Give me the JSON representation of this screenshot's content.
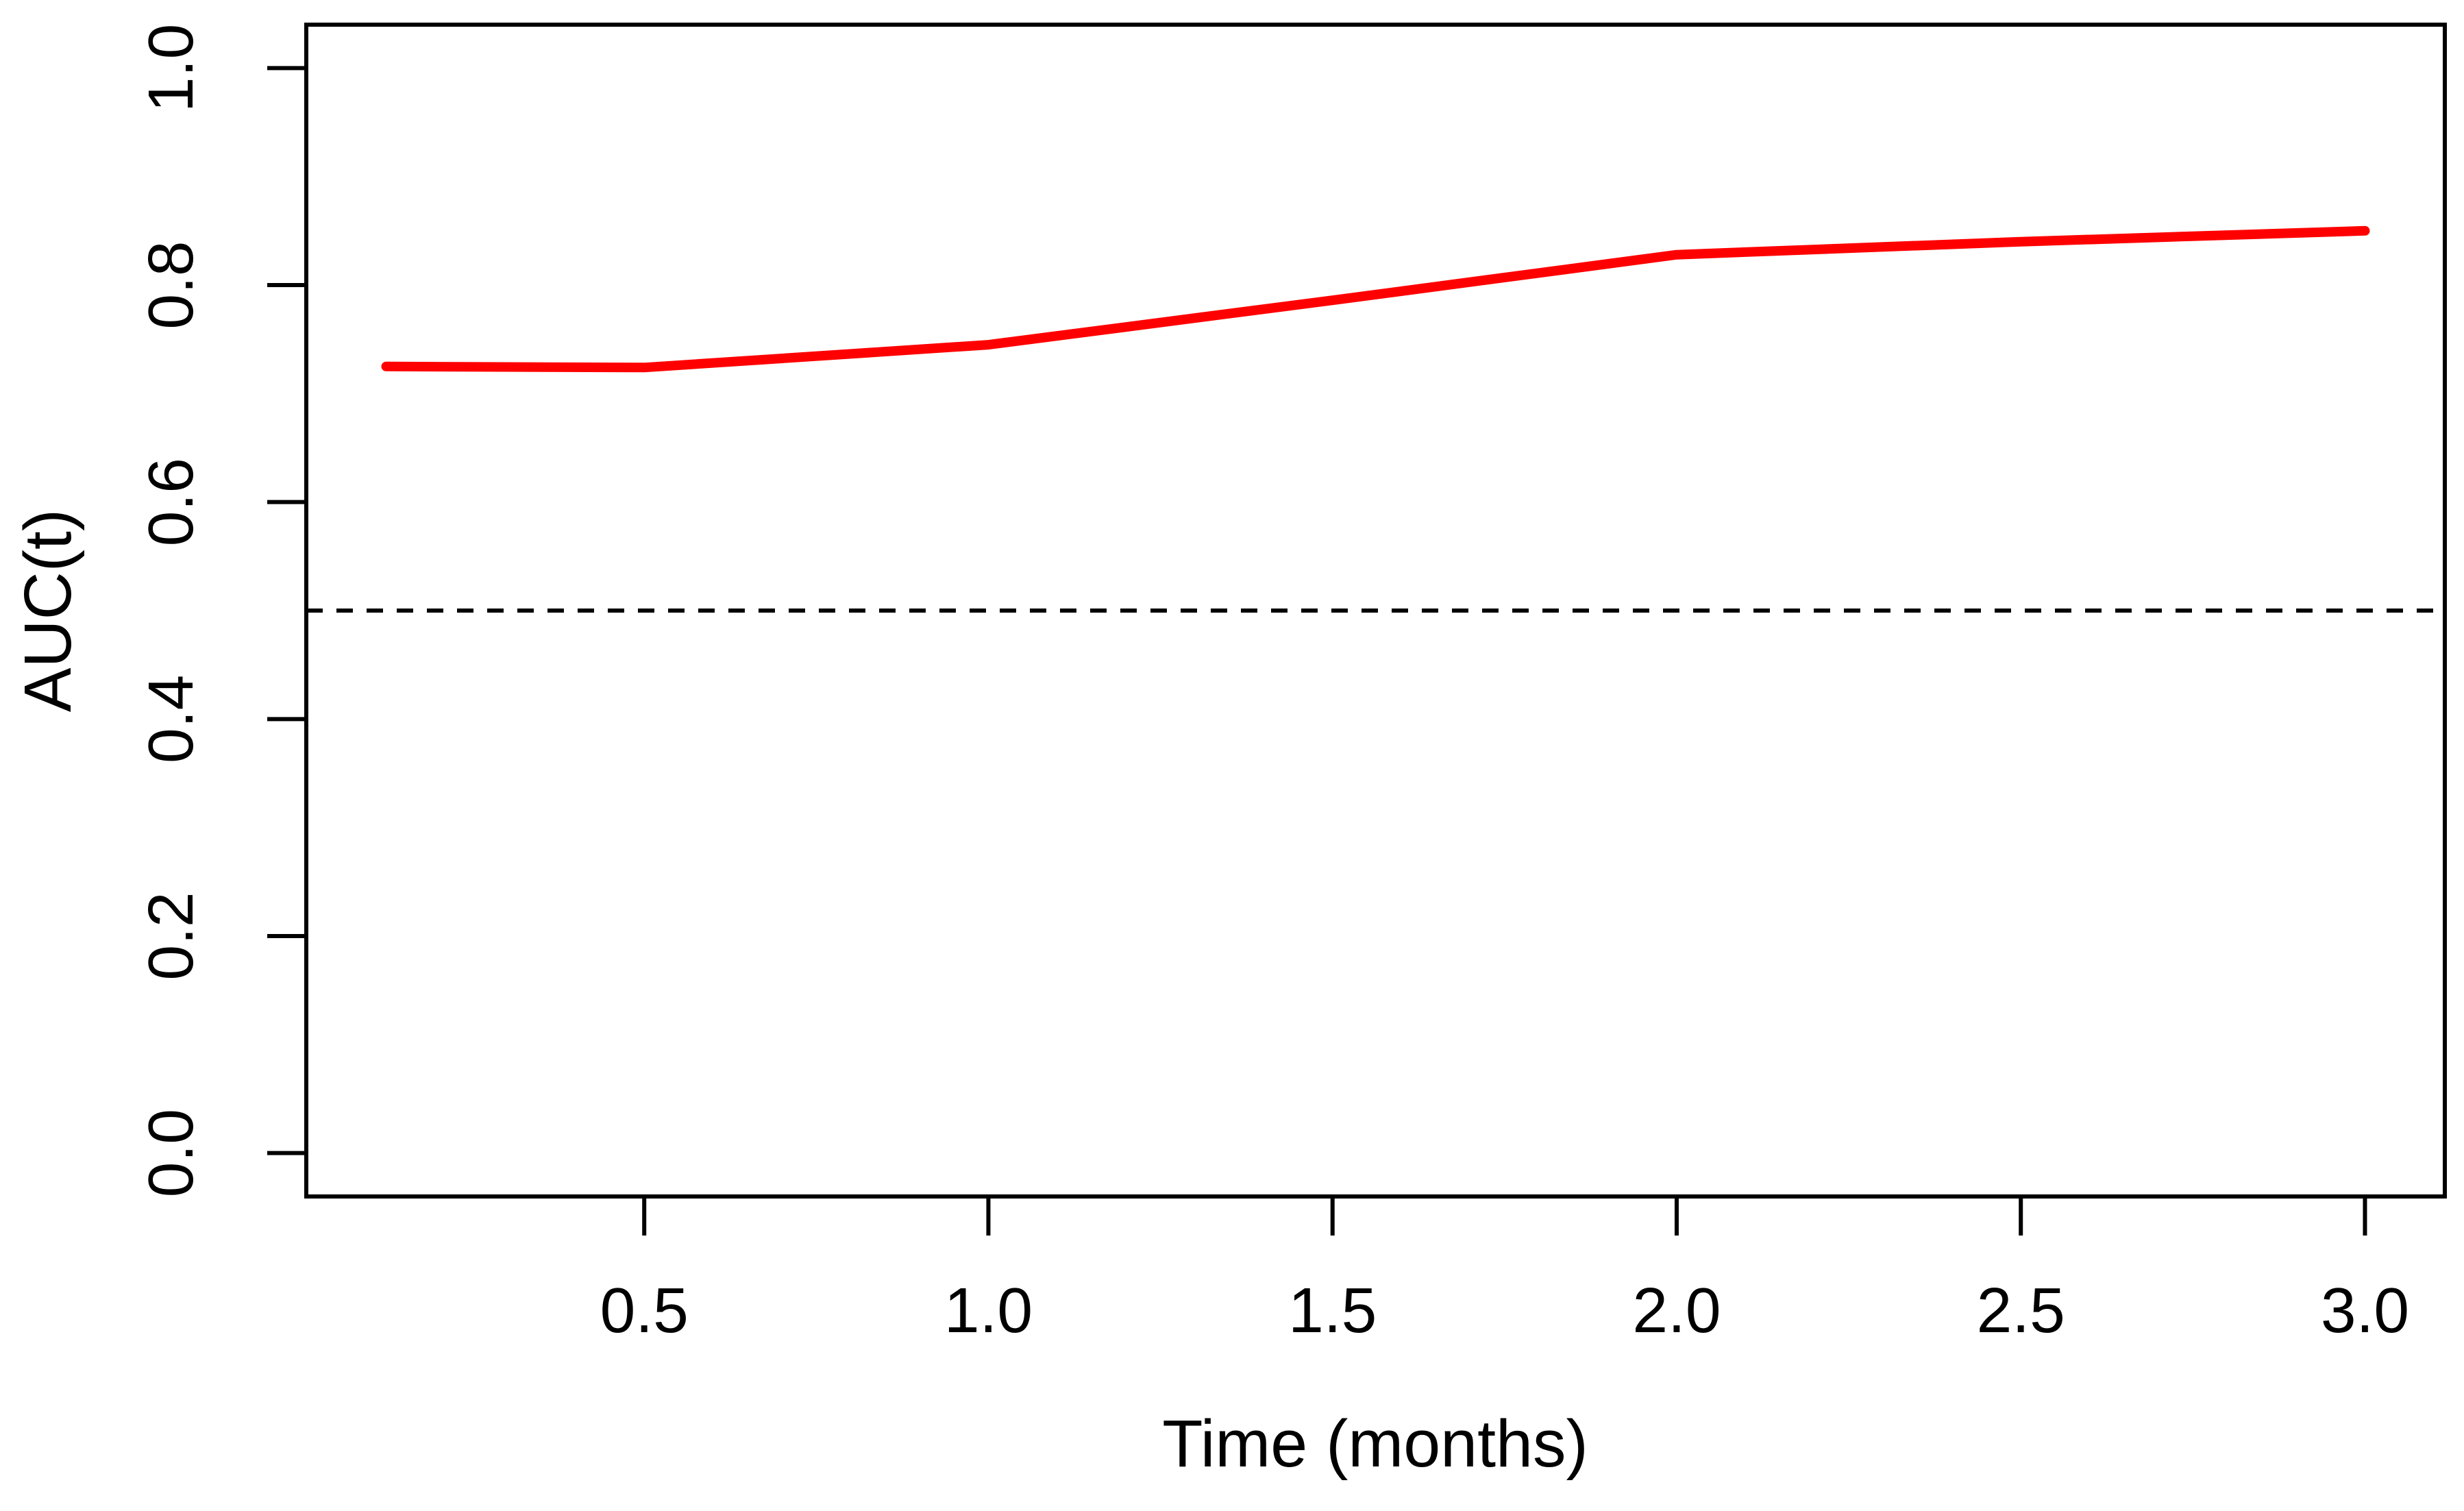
{
  "page": {
    "background_color": "#FFFFFF",
    "axis_color": "#000000"
  },
  "chart_data": {
    "type": "line",
    "title": "",
    "xlabel": "Time (months)",
    "ylabel": "AUC(t)",
    "xlim": [
      0.009,
      3.116
    ],
    "ylim": [
      -0.04,
      1.04
    ],
    "grid": false,
    "legend_position": "none",
    "x_ticks": {
      "values": [
        0.5,
        1.0,
        1.5,
        2.0,
        2.5,
        3.0
      ],
      "labels": [
        "0.5",
        "1.0",
        "1.5",
        "2.0",
        "2.5",
        "3.0"
      ]
    },
    "y_ticks": {
      "values": [
        0.0,
        0.2,
        0.4,
        0.6,
        0.8,
        1.0
      ],
      "labels": [
        "0.0",
        "0.2",
        "0.4",
        "0.6",
        "0.8",
        "1.0"
      ]
    },
    "series": [
      {
        "name": "AUC(t) curve",
        "color": "#FF0000",
        "line_width": 14,
        "x": [
          0.125,
          0.5,
          1.0,
          1.5,
          2.0,
          2.5,
          3.0
        ],
        "y": [
          0.725,
          0.724,
          0.745,
          0.786,
          0.828,
          0.84,
          0.85
        ]
      }
    ],
    "reference_line": {
      "y": 0.5,
      "style": "dashed",
      "color": "#000000",
      "line_width": 6,
      "dash": [
        24,
        20
      ]
    }
  }
}
